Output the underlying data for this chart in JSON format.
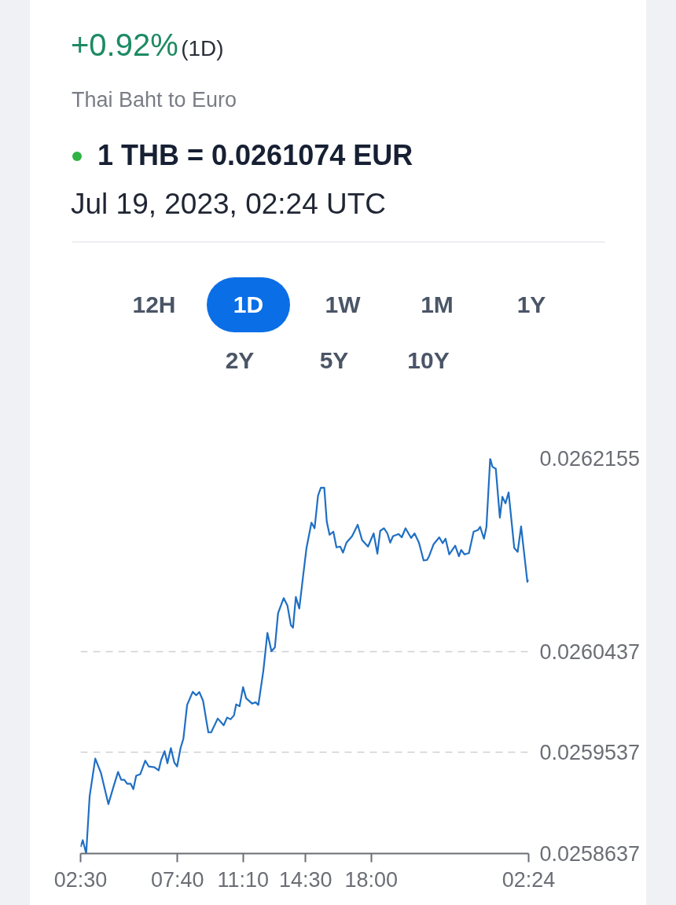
{
  "chart_data": {
    "type": "line",
    "title": "1 THB = 0.0261074 EUR",
    "subtitle": "Thai Baht to Euro",
    "annotations": [
      "+0.92%",
      "(1D)",
      "Jul 19, 2023, 02:24 UTC",
      "12H",
      "1D",
      "1W",
      "1M",
      "1Y",
      "2Y",
      "5Y",
      "10Y"
    ],
    "x": [
      "2023-07-18T02:30",
      "2023-07-18T02:37",
      "2023-07-18T02:48",
      "2023-07-18T02:59",
      "2023-07-18T03:17",
      "2023-07-18T03:35",
      "2023-07-18T03:59",
      "2023-07-18T04:16",
      "2023-07-18T04:30",
      "2023-07-18T04:40",
      "2023-07-18T04:50",
      "2023-07-18T04:59",
      "2023-07-18T05:10",
      "2023-07-18T05:19",
      "2023-07-18T05:28",
      "2023-07-18T05:41",
      "2023-07-18T05:57",
      "2023-07-18T06:08",
      "2023-07-18T06:26",
      "2023-07-18T06:40",
      "2023-07-18T06:48",
      "2023-07-18T06:59",
      "2023-07-18T07:08",
      "2023-07-18T07:19",
      "2023-07-18T07:30",
      "2023-07-18T07:39",
      "2023-07-18T07:50",
      "2023-07-18T07:59",
      "2023-07-18T08:11",
      "2023-07-18T08:29",
      "2023-07-18T08:40",
      "2023-07-18T08:50",
      "2023-07-18T09:02",
      "2023-07-18T09:14",
      "2023-07-18T09:19",
      "2023-07-18T09:28",
      "2023-07-18T09:49",
      "2023-07-18T10:08",
      "2023-07-18T10:19",
      "2023-07-18T10:30",
      "2023-07-18T10:41",
      "2023-07-18T10:48",
      "2023-07-18T10:59",
      "2023-07-18T11:10",
      "2023-07-18T11:20",
      "2023-07-18T11:39",
      "2023-07-18T11:50",
      "2023-07-18T11:59",
      "2023-07-18T12:15",
      "2023-07-18T12:28",
      "2023-07-18T12:41",
      "2023-07-18T12:52",
      "2023-07-18T13:02",
      "2023-07-18T13:20",
      "2023-07-18T13:32",
      "2023-07-18T13:43",
      "2023-07-18T13:50",
      "2023-07-18T13:59",
      "2023-07-18T14:10",
      "2023-07-18T14:22",
      "2023-07-18T14:33",
      "2023-07-18T14:49",
      "2023-07-18T14:59",
      "2023-07-18T15:10",
      "2023-07-18T15:19",
      "2023-07-18T15:30",
      "2023-07-18T15:38",
      "2023-07-18T15:47",
      "2023-07-18T15:59",
      "2023-07-18T16:09",
      "2023-07-18T16:21",
      "2023-07-18T16:30",
      "2023-07-18T16:41",
      "2023-07-18T16:59",
      "2023-07-18T17:17",
      "2023-07-18T17:31",
      "2023-07-18T17:50",
      "2023-07-18T18:08",
      "2023-07-18T18:20",
      "2023-07-18T18:29",
      "2023-07-18T18:41",
      "2023-07-18T18:52",
      "2023-07-18T19:01",
      "2023-07-18T19:10",
      "2023-07-18T19:28",
      "2023-07-18T19:38",
      "2023-07-18T19:50",
      "2023-07-18T20:08",
      "2023-07-18T20:19",
      "2023-07-18T20:33",
      "2023-07-18T20:48",
      "2023-07-18T20:59",
      "2023-07-18T21:06",
      "2023-07-18T21:20",
      "2023-07-18T21:38",
      "2023-07-18T21:49",
      "2023-07-18T21:58",
      "2023-07-18T22:10",
      "2023-07-18T22:29",
      "2023-07-18T22:41",
      "2023-07-18T22:48",
      "2023-07-18T22:59",
      "2023-07-18T23:13",
      "2023-07-18T23:28",
      "2023-07-18T23:42",
      "2023-07-18T23:49",
      "2023-07-19T00:01",
      "2023-07-19T00:09",
      "2023-07-19T00:21",
      "2023-07-19T00:28",
      "2023-07-19T00:39",
      "2023-07-19T00:52",
      "2023-07-19T01:00",
      "2023-07-19T01:10",
      "2023-07-19T01:20",
      "2023-07-19T01:38",
      "2023-07-19T01:49",
      "2023-07-19T02:00",
      "2023-07-19T02:20",
      "2023-07-19T02:24"
    ],
    "series": [
      {
        "color": "#1f6fc4",
        "values": [
          0.0258695,
          0.0258756,
          0.0258637,
          0.0259147,
          0.0259483,
          0.0259357,
          0.0259077,
          0.0259238,
          0.0259364,
          0.0259294,
          0.0259294,
          0.0259259,
          0.0259259,
          0.025921,
          0.0259329,
          0.0259343,
          0.0259464,
          0.0259413,
          0.0259406,
          0.0259378,
          0.0259471,
          0.0259548,
          0.0259441,
          0.0259576,
          0.0259448,
          0.0259413,
          0.0259576,
          0.0259658,
          0.025996,
          0.0260077,
          0.0260046,
          0.0260075,
          0.0259997,
          0.0259797,
          0.0259716,
          0.0259716,
          0.0259839,
          0.0259779,
          0.0259848,
          0.0259832,
          0.0259867,
          0.0259965,
          0.0259949,
          0.0260119,
          0.0260019,
          0.0259972,
          0.0259984,
          0.025996,
          0.0260264,
          0.0260601,
          0.0260438,
          0.0260473,
          0.0260776,
          0.0260911,
          0.0260846,
          0.0260671,
          0.0260648,
          0.0260921,
          0.0260818,
          0.0261102,
          0.0261356,
          0.0261583,
          0.0261533,
          0.0261824,
          0.0261894,
          0.0261894,
          0.0261592,
          0.0261475,
          0.0261503,
          0.0261363,
          0.026137,
          0.0261316,
          0.0261405,
          0.0261463,
          0.0261564,
          0.0261428,
          0.026137,
          0.0261487,
          0.0261307,
          0.026151,
          0.0261533,
          0.0261487,
          0.0261405,
          0.0261463,
          0.0261482,
          0.0261452,
          0.0261533,
          0.0261447,
          0.0261487,
          0.0261405,
          0.0261246,
          0.0261251,
          0.0261288,
          0.0261391,
          0.0261452,
          0.02614,
          0.026144,
          0.02613,
          0.0261377,
          0.0261284,
          0.026134,
          0.02613,
          0.0261312,
          0.0261503,
          0.0261517,
          0.0261545,
          0.026144,
          0.0261545,
          0.0262155,
          0.0262081,
          0.0262062,
          0.0261627,
          0.0261813,
          0.0261755,
          0.0261852,
          0.0261358,
          0.0261323,
          0.026155,
          0.0261056,
          0.0261074
        ]
      }
    ],
    "xlim": [
      "2023-07-18T02:30",
      "2023-07-19T02:24"
    ],
    "xticks": [
      {
        "value": "2023-07-18T02:30",
        "label": "02:30"
      },
      {
        "value": "2023-07-18T07:40",
        "label": "07:40"
      },
      {
        "value": "2023-07-18T11:10",
        "label": "11:10"
      },
      {
        "value": "2023-07-18T14:30",
        "label": "14:30"
      },
      {
        "value": "2023-07-18T18:00",
        "label": "18:00"
      },
      {
        "value": "2023-07-19T02:24",
        "label": "02:24"
      }
    ],
    "ylim": [
      0.0258637,
      0.0262155
    ],
    "yticks": [
      0.0258637,
      0.0259537,
      0.0260437,
      0.0262155
    ],
    "grid": "y",
    "line_style": "solid"
  }
}
